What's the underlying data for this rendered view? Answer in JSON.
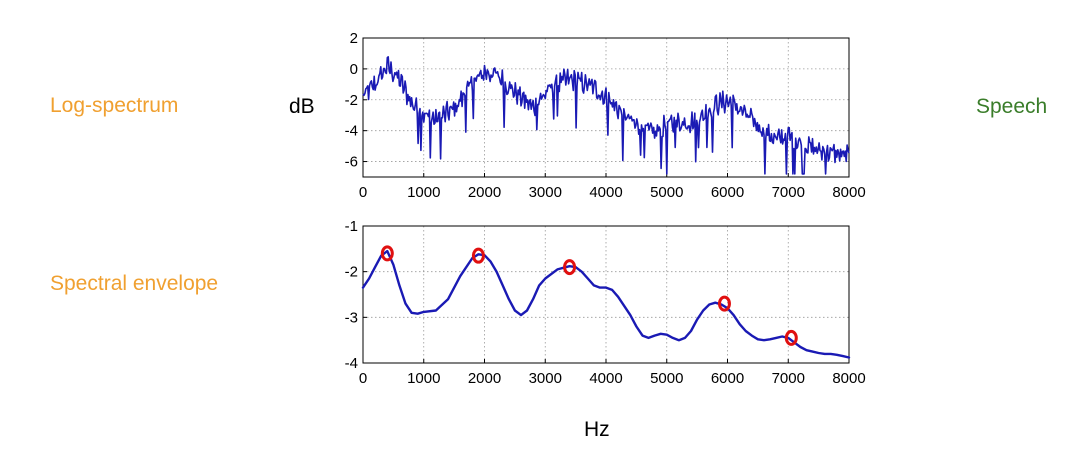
{
  "labels": {
    "log_spectrum": "Log-spectrum",
    "spectral_envelope": "Spectral envelope",
    "ylabel": "dB",
    "xlabel": "Hz",
    "speech": "Speech"
  },
  "colors": {
    "label_orange": "#f0a030",
    "label_green": "#3a7d2a",
    "line_blue": "#1a1ab4",
    "marker_red": "#e01010"
  },
  "chart_data": [
    {
      "type": "line",
      "name": "top",
      "xlim": [
        0,
        8000
      ],
      "ylim": [
        -7,
        2
      ],
      "xticks": [
        0,
        1000,
        2000,
        3000,
        4000,
        5000,
        6000,
        7000,
        8000
      ],
      "yticks": [
        2,
        0,
        -2,
        -4,
        -6
      ],
      "grid": true,
      "envelope": {
        "x": [
          0,
          200,
          400,
          600,
          800,
          1000,
          1200,
          1500,
          1800,
          2000,
          2200,
          2500,
          2800,
          3000,
          3200,
          3400,
          3600,
          3800,
          4000,
          4200,
          4500,
          4800,
          5000,
          5200,
          5500,
          5800,
          6000,
          6200,
          6500,
          6800,
          7000,
          7200,
          7500,
          7800,
          8000
        ],
        "y": [
          -1.8,
          -1.0,
          0.2,
          -0.7,
          -2.2,
          -3.0,
          -3.3,
          -2.6,
          -1.0,
          -0.2,
          -0.4,
          -1.5,
          -2.5,
          -1.6,
          -0.9,
          -0.7,
          -0.9,
          -1.2,
          -1.9,
          -2.6,
          -3.7,
          -4.2,
          -3.6,
          -3.5,
          -3.4,
          -2.3,
          -2.1,
          -2.6,
          -3.7,
          -4.6,
          -4.3,
          -4.8,
          -5.3,
          -5.5,
          -5.6
        ]
      },
      "noise_amplitude_db": 0.8
    },
    {
      "type": "line",
      "name": "bottom",
      "xlim": [
        0,
        8000
      ],
      "ylim": [
        -4,
        -1
      ],
      "xticks": [
        0,
        1000,
        2000,
        3000,
        4000,
        5000,
        6000,
        7000,
        8000
      ],
      "yticks": [
        -1,
        -2,
        -3,
        -4
      ],
      "grid": true,
      "x": [
        0,
        100,
        200,
        300,
        400,
        500,
        600,
        700,
        800,
        900,
        1000,
        1200,
        1400,
        1600,
        1800,
        1900,
        2000,
        2100,
        2200,
        2300,
        2400,
        2500,
        2600,
        2700,
        2800,
        2900,
        3000,
        3200,
        3400,
        3500,
        3600,
        3700,
        3800,
        3900,
        4000,
        4100,
        4200,
        4300,
        4400,
        4500,
        4600,
        4700,
        4800,
        4900,
        5000,
        5100,
        5200,
        5300,
        5400,
        5500,
        5600,
        5700,
        5800,
        5900,
        6000,
        6100,
        6200,
        6300,
        6400,
        6500,
        6600,
        6700,
        6800,
        6900,
        7000,
        7100,
        7200,
        7300,
        7400,
        7500,
        7600,
        7700,
        7800,
        7900,
        8000
      ],
      "y": [
        -2.35,
        -2.15,
        -1.9,
        -1.65,
        -1.55,
        -1.85,
        -2.3,
        -2.7,
        -2.9,
        -2.92,
        -2.88,
        -2.85,
        -2.6,
        -2.1,
        -1.7,
        -1.62,
        -1.64,
        -1.78,
        -2.0,
        -2.3,
        -2.6,
        -2.85,
        -2.95,
        -2.85,
        -2.6,
        -2.3,
        -2.15,
        -1.95,
        -1.88,
        -1.9,
        -2.0,
        -2.15,
        -2.3,
        -2.35,
        -2.35,
        -2.4,
        -2.55,
        -2.75,
        -2.95,
        -3.2,
        -3.4,
        -3.45,
        -3.4,
        -3.36,
        -3.38,
        -3.45,
        -3.5,
        -3.45,
        -3.3,
        -3.05,
        -2.85,
        -2.72,
        -2.68,
        -2.72,
        -2.8,
        -2.95,
        -3.15,
        -3.3,
        -3.4,
        -3.48,
        -3.5,
        -3.48,
        -3.45,
        -3.42,
        -3.45,
        -3.55,
        -3.65,
        -3.72,
        -3.75,
        -3.78,
        -3.8,
        -3.8,
        -3.82,
        -3.85,
        -3.88
      ],
      "markers": [
        {
          "x": 400,
          "y": -1.6
        },
        {
          "x": 1900,
          "y": -1.65
        },
        {
          "x": 3400,
          "y": -1.9
        },
        {
          "x": 5950,
          "y": -2.7
        },
        {
          "x": 7050,
          "y": -3.45
        }
      ]
    }
  ]
}
